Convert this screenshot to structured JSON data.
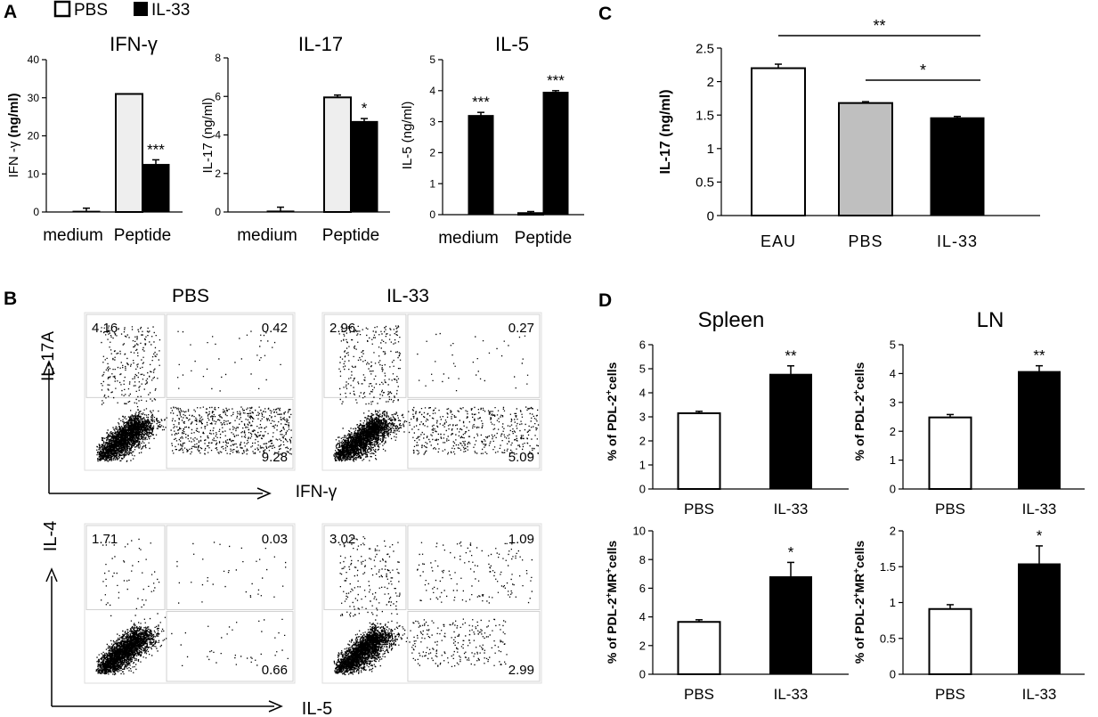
{
  "legend": [
    {
      "label": "PBS",
      "color": "#ffffff"
    },
    {
      "label": "IL-33",
      "color": "#000000"
    }
  ],
  "chart_data": [
    {
      "id": "A1",
      "panel_letter": "A",
      "type": "bar",
      "title": "IFN-γ",
      "ylabel": "IFN -γ (ng/ml)",
      "ylim": [
        0,
        40
      ],
      "yticks": [
        0,
        10,
        20,
        30,
        40
      ],
      "categories": [
        "medium",
        "Peptide"
      ],
      "series": [
        {
          "name": "PBS",
          "color": "#eeeeee",
          "values": [
            0,
            31
          ],
          "errors": [
            0,
            0
          ]
        },
        {
          "name": "IL-33",
          "color": "#000000",
          "values": [
            0.2,
            12.5
          ],
          "errors": [
            0.8,
            1.2
          ]
        }
      ],
      "annotations": [
        {
          "category": 1,
          "series": 1,
          "text": "***"
        }
      ]
    },
    {
      "id": "A2",
      "type": "bar",
      "title": "IL-17",
      "ylabel": "IL-17 (ng/ml)",
      "ylim": [
        0,
        8
      ],
      "yticks": [
        0,
        2,
        4,
        6,
        8
      ],
      "categories": [
        "medium",
        "Peptide"
      ],
      "series": [
        {
          "name": "PBS",
          "color": "#eeeeee",
          "values": [
            0,
            5.95
          ],
          "errors": [
            0,
            0.12
          ]
        },
        {
          "name": "IL-33",
          "color": "#000000",
          "values": [
            0.05,
            4.7
          ],
          "errors": [
            0.2,
            0.15
          ]
        }
      ],
      "annotations": [
        {
          "category": 1,
          "series": 1,
          "text": "*"
        }
      ]
    },
    {
      "id": "A3",
      "type": "bar",
      "title": "IL-5",
      "ylabel": "IL-5 (ng/ml)",
      "ylim": [
        0,
        5
      ],
      "yticks": [
        0,
        1,
        2,
        3,
        4,
        5
      ],
      "categories": [
        "medium",
        "Peptide"
      ],
      "series": [
        {
          "name": "PBS",
          "color": "#eeeeee",
          "values": [
            0,
            0.05
          ],
          "errors": [
            0,
            0.05
          ]
        },
        {
          "name": "IL-33",
          "color": "#000000",
          "values": [
            3.2,
            3.95
          ],
          "errors": [
            0.1,
            0.05
          ]
        }
      ],
      "annotations": [
        {
          "category": 0,
          "series": 1,
          "text": "***"
        },
        {
          "category": 1,
          "series": 1,
          "text": "***"
        }
      ]
    },
    {
      "id": "C",
      "panel_letter": "C",
      "type": "bar",
      "ylabel": "IL-17 (ng/ml)",
      "ylim": [
        0,
        2.5
      ],
      "yticks": [
        0,
        0.5,
        1,
        1.5,
        2,
        2.5
      ],
      "categories": [
        "EAU",
        "PBS",
        "IL-33"
      ],
      "values": [
        2.2,
        1.68,
        1.46
      ],
      "errors": [
        0.06,
        0.02,
        0.02
      ],
      "colors": [
        "#ffffff",
        "#bfbfbf",
        "#000000"
      ],
      "significance": [
        {
          "from": 0,
          "to": 2,
          "text": "**"
        },
        {
          "from": 1,
          "to": 2,
          "text": "*"
        }
      ]
    },
    {
      "id": "D1",
      "panel_letter": "D",
      "type": "bar",
      "title": "Spleen",
      "ylabel": "% of PDL-2+cells",
      "ylim": [
        0,
        6
      ],
      "yticks": [
        0,
        1,
        2,
        3,
        4,
        5,
        6
      ],
      "categories": [
        "PBS",
        "IL-33"
      ],
      "values": [
        3.15,
        4.77
      ],
      "errors": [
        0.08,
        0.35
      ],
      "colors": [
        "#ffffff",
        "#000000"
      ],
      "annotations": [
        {
          "category": 1,
          "text": "**"
        }
      ]
    },
    {
      "id": "D2",
      "type": "bar",
      "title": "LN",
      "ylabel": "% of PDL-2+cells",
      "ylim": [
        0,
        5
      ],
      "yticks": [
        0,
        1,
        2,
        3,
        4,
        5
      ],
      "categories": [
        "PBS",
        "IL-33"
      ],
      "values": [
        2.48,
        4.07
      ],
      "errors": [
        0.1,
        0.2
      ],
      "colors": [
        "#ffffff",
        "#000000"
      ],
      "annotations": [
        {
          "category": 1,
          "text": "**"
        }
      ]
    },
    {
      "id": "D3",
      "type": "bar",
      "ylabel": "% of PDL-2+MR+cells",
      "ylim": [
        0,
        10
      ],
      "yticks": [
        0,
        2,
        4,
        6,
        8,
        10
      ],
      "categories": [
        "PBS",
        "IL-33"
      ],
      "values": [
        3.65,
        6.8
      ],
      "errors": [
        0.15,
        1.0
      ],
      "colors": [
        "#ffffff",
        "#000000"
      ],
      "annotations": [
        {
          "category": 1,
          "text": "*"
        }
      ]
    },
    {
      "id": "D4",
      "type": "bar",
      "ylabel": "% of PDL-2+MR+cells",
      "ylim": [
        0,
        2
      ],
      "yticks": [
        0,
        0.5,
        1,
        1.5,
        2
      ],
      "categories": [
        "PBS",
        "IL-33"
      ],
      "values": [
        0.91,
        1.54
      ],
      "errors": [
        0.06,
        0.25
      ],
      "colors": [
        "#ffffff",
        "#000000"
      ],
      "annotations": [
        {
          "category": 1,
          "text": "*"
        }
      ]
    }
  ],
  "flow": {
    "panel_letter": "B",
    "columns": [
      "PBS",
      "IL-33"
    ],
    "rows": [
      {
        "ylabel": "IL-17A",
        "xlabel": "IFN-γ",
        "plots": [
          {
            "ul": "4.16",
            "ur": "0.42",
            "lr": "9.28"
          },
          {
            "ul": "2.96",
            "ur": "0.27",
            "lr": "5.09"
          }
        ]
      },
      {
        "ylabel": "IL-4",
        "xlabel": "IL-5",
        "plots": [
          {
            "ul": "1.71",
            "ur": "0.03",
            "lr": "0.66"
          },
          {
            "ul": "3.02",
            "ur": "1.09",
            "lr": "2.99"
          }
        ]
      }
    ]
  }
}
